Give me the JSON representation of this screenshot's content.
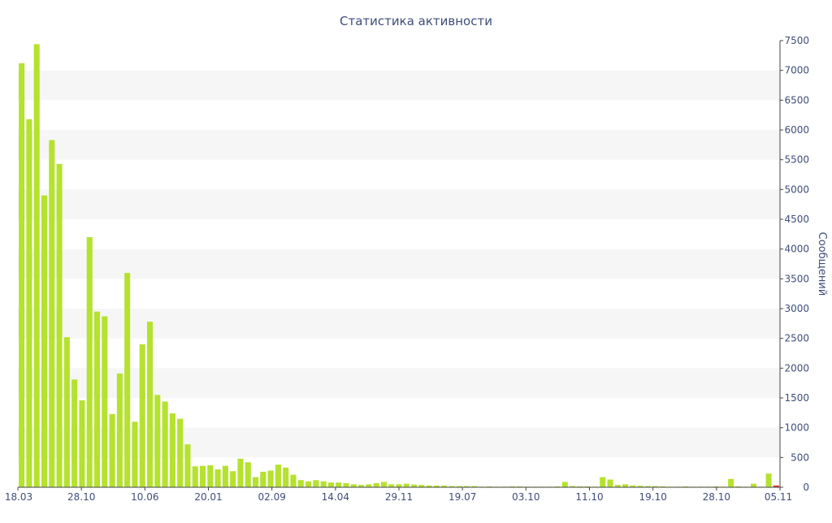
{
  "chart_data": {
    "type": "bar",
    "title": "Статистика активности",
    "ylabel": "Сообщений",
    "xlabel": "",
    "ylim": [
      0,
      7500
    ],
    "y_ticks": [
      0,
      500,
      1000,
      1500,
      2000,
      2500,
      3000,
      3500,
      4000,
      4500,
      5000,
      5500,
      6000,
      6500,
      7000,
      7500
    ],
    "y_axis_position": "right",
    "x_ticks": [
      "18.03",
      "28.10",
      "10.06",
      "20.01",
      "02.09",
      "14.04",
      "29.11",
      "19.07",
      "03.10",
      "11.10",
      "19.10",
      "28.10",
      "05.11"
    ],
    "grid": "alternating horizontal bands",
    "legend": "none",
    "colors": {
      "bar": "#b5e22e",
      "last_bar": "#e0392b",
      "text": "#3f4d7a",
      "band": "#f6f6f6",
      "axis": "#444444"
    },
    "values": [
      7120,
      6180,
      7440,
      4900,
      5830,
      5430,
      2520,
      1810,
      1460,
      4200,
      2950,
      2870,
      1230,
      1910,
      3600,
      1100,
      2400,
      2780,
      1550,
      1440,
      1240,
      1150,
      720,
      350,
      360,
      370,
      300,
      360,
      270,
      480,
      420,
      170,
      260,
      280,
      380,
      330,
      210,
      120,
      100,
      120,
      100,
      80,
      80,
      70,
      50,
      40,
      50,
      70,
      90,
      50,
      50,
      60,
      45,
      40,
      30,
      30,
      30,
      20,
      20,
      20,
      20,
      10,
      15,
      10,
      10,
      15,
      15,
      10,
      10,
      10,
      10,
      15,
      90,
      20,
      15,
      15,
      10,
      170,
      130,
      40,
      50,
      30,
      25,
      20,
      20,
      15,
      10,
      10,
      15,
      10,
      10,
      10,
      15,
      10,
      140,
      15,
      10,
      60,
      10,
      230,
      30
    ]
  }
}
